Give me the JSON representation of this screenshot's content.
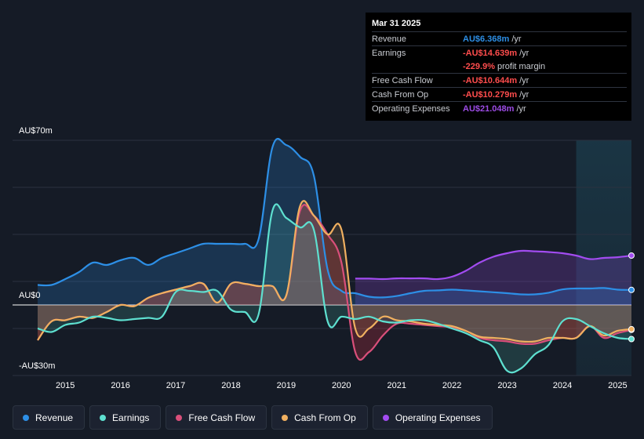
{
  "tooltip": {
    "date": "Mar 31 2025",
    "rows": [
      {
        "label": "Revenue",
        "value": "AU$6.368m",
        "unit": "/yr",
        "color": "#2d8fe6"
      },
      {
        "label": "Earnings",
        "value": "-AU$14.639m",
        "unit": "/yr",
        "color": "#ff4d4d"
      },
      {
        "label": "",
        "value": "-229.9%",
        "unit": "profit margin",
        "color": "#ff4d4d"
      },
      {
        "label": "Free Cash Flow",
        "value": "-AU$10.644m",
        "unit": "/yr",
        "color": "#ff4d4d"
      },
      {
        "label": "Cash From Op",
        "value": "-AU$10.279m",
        "unit": "/yr",
        "color": "#ff4d4d"
      },
      {
        "label": "Operating Expenses",
        "value": "AU$21.048m",
        "unit": "/yr",
        "color": "#9d4ce6"
      }
    ]
  },
  "legend": [
    {
      "label": "Revenue",
      "color": "#2d8fe6"
    },
    {
      "label": "Earnings",
      "color": "#5ee0d0"
    },
    {
      "label": "Free Cash Flow",
      "color": "#d94f7a"
    },
    {
      "label": "Cash From Op",
      "color": "#f0b060"
    },
    {
      "label": "Operating Expenses",
      "color": "#a24cf0"
    }
  ],
  "chart_data": {
    "type": "line",
    "y_axis_labels": [
      "AU$70m",
      "AU$0",
      "-AU$30m"
    ],
    "ylim": [
      -30,
      70
    ],
    "xlim": [
      2014.5,
      2025.25
    ],
    "x_ticks": [
      "2015",
      "2016",
      "2017",
      "2018",
      "2019",
      "2020",
      "2021",
      "2022",
      "2023",
      "2024",
      "2025"
    ],
    "series": [
      {
        "name": "Revenue",
        "color": "#2d8fe6",
        "x": [
          2014.5,
          2014.75,
          2015.0,
          2015.25,
          2015.5,
          2015.75,
          2016.0,
          2016.25,
          2016.5,
          2016.75,
          2017.0,
          2017.25,
          2017.5,
          2017.75,
          2018.0,
          2018.25,
          2018.5,
          2018.75,
          2019.0,
          2019.25,
          2019.5,
          2019.75,
          2020.0,
          2020.25,
          2020.5,
          2020.75,
          2021.0,
          2021.25,
          2021.5,
          2021.75,
          2022.0,
          2022.25,
          2022.5,
          2022.75,
          2023.0,
          2023.25,
          2023.5,
          2023.75,
          2024.0,
          2024.25,
          2024.5,
          2024.75,
          2025.0,
          2025.25
        ],
        "values": [
          8.5,
          8.5,
          11,
          14,
          18,
          17,
          19,
          20,
          17,
          20,
          22,
          24,
          26,
          26,
          26,
          26,
          28,
          67,
          68,
          63,
          55,
          15,
          6,
          5,
          3.5,
          3.2,
          3.8,
          5,
          6,
          6.2,
          6.5,
          6.2,
          5.8,
          5.4,
          5,
          4.5,
          4.5,
          5.2,
          6.6,
          7,
          7,
          7.2,
          6.5,
          6.4
        ]
      },
      {
        "name": "Earnings",
        "color": "#5ee0d0",
        "x": [
          2014.5,
          2014.75,
          2015.0,
          2015.25,
          2015.5,
          2015.75,
          2016.0,
          2016.25,
          2016.5,
          2016.75,
          2017.0,
          2017.25,
          2017.5,
          2017.75,
          2018.0,
          2018.25,
          2018.5,
          2018.75,
          2019.0,
          2019.25,
          2019.5,
          2019.75,
          2020.0,
          2020.25,
          2020.5,
          2020.75,
          2021.0,
          2021.25,
          2021.5,
          2021.75,
          2022.0,
          2022.25,
          2022.5,
          2022.75,
          2023.0,
          2023.25,
          2023.5,
          2023.75,
          2024.0,
          2024.25,
          2024.5,
          2024.75,
          2025.0,
          2025.25
        ],
        "values": [
          -10,
          -11.5,
          -8.5,
          -7.5,
          -5,
          -5.5,
          -6.5,
          -6,
          -5.5,
          -5,
          5.5,
          6,
          5.5,
          6,
          -2,
          -3,
          -4,
          40,
          37,
          33,
          32,
          -7,
          -5,
          -6,
          -5,
          -7,
          -7.5,
          -6.5,
          -6.5,
          -8,
          -10,
          -12,
          -15,
          -18,
          -28,
          -27,
          -21,
          -17,
          -7,
          -6,
          -9,
          -12,
          -14,
          -14.5
        ]
      },
      {
        "name": "Free Cash Flow",
        "color": "#d94f7a",
        "x": [
          2014.5,
          2014.75,
          2015.0,
          2015.25,
          2015.5,
          2015.75,
          2016.0,
          2016.25,
          2016.5,
          2016.75,
          2017.0,
          2017.25,
          2017.5,
          2017.75,
          2018.0,
          2018.25,
          2018.5,
          2018.75,
          2019.0,
          2019.25,
          2019.5,
          2019.75,
          2020.0,
          2020.25,
          2020.5,
          2020.75,
          2021.0,
          2021.25,
          2021.5,
          2021.75,
          2022.0,
          2022.25,
          2022.5,
          2022.75,
          2023.0,
          2023.25,
          2023.5,
          2023.75,
          2024.0,
          2024.25,
          2024.5,
          2024.75,
          2025.0,
          2025.25
        ],
        "values": [
          -15,
          -7,
          -6.5,
          -5,
          -5.5,
          -3,
          0,
          -0.5,
          3,
          5,
          6.5,
          8,
          9,
          1,
          9,
          9,
          8,
          8,
          4,
          40,
          38,
          30,
          18,
          -20,
          -20,
          -13,
          -8,
          -8,
          -8.5,
          -9,
          -9.5,
          -11,
          -14,
          -15,
          -15.5,
          -16.5,
          -16.5,
          -15,
          -14,
          -14,
          -9,
          -14,
          -12,
          -10.6
        ]
      },
      {
        "name": "Cash From Op",
        "color": "#f0b060",
        "x": [
          2014.5,
          2014.75,
          2015.0,
          2015.25,
          2015.5,
          2015.75,
          2016.0,
          2016.25,
          2016.5,
          2016.75,
          2017.0,
          2017.25,
          2017.5,
          2017.75,
          2018.0,
          2018.25,
          2018.5,
          2018.75,
          2019.0,
          2019.25,
          2019.5,
          2019.75,
          2020.0,
          2020.25,
          2020.5,
          2020.75,
          2021.0,
          2021.25,
          2021.5,
          2021.75,
          2022.0,
          2022.25,
          2022.5,
          2022.75,
          2023.0,
          2023.25,
          2023.5,
          2023.75,
          2024.0,
          2024.25,
          2024.5,
          2024.75,
          2025.0,
          2025.25
        ],
        "values": [
          -15,
          -7,
          -6.5,
          -5,
          -5.5,
          -3,
          0,
          -0.5,
          3,
          5,
          6.5,
          8,
          9,
          1,
          9,
          9,
          8,
          8,
          4,
          42,
          38,
          30,
          32,
          -10,
          -10,
          -5,
          -6.5,
          -7,
          -8,
          -8.5,
          -9,
          -11,
          -13.5,
          -14,
          -14.5,
          -15.5,
          -15.5,
          -14,
          -14,
          -14,
          -9,
          -13,
          -11,
          -10.3
        ]
      },
      {
        "name": "Operating Expenses",
        "color": "#a24cf0",
        "x": [
          2020.25,
          2020.5,
          2020.75,
          2021.0,
          2021.25,
          2021.5,
          2021.75,
          2022.0,
          2022.25,
          2022.5,
          2022.75,
          2023.0,
          2023.25,
          2023.5,
          2023.75,
          2024.0,
          2024.25,
          2024.5,
          2024.75,
          2025.0,
          2025.25
        ],
        "values": [
          11.2,
          11.2,
          11,
          11.3,
          11.3,
          11.3,
          11,
          12,
          14.5,
          18,
          20.5,
          22,
          23,
          22.8,
          22.5,
          22,
          21,
          19.5,
          20,
          20.3,
          21
        ]
      }
    ]
  }
}
